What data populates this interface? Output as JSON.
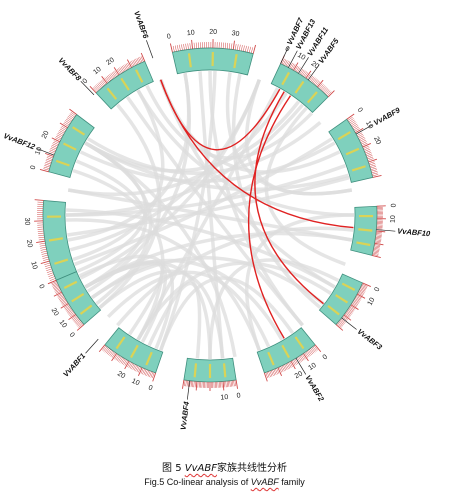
{
  "figure": {
    "caption_cn": {
      "prefix": "图 5 ",
      "gene": "VvABF",
      "suffix": "家族共线性分析"
    },
    "caption_en": {
      "prefix": "Fig.5 Co-linear analysis of ",
      "gene": "VvABF",
      "suffix": " family"
    }
  },
  "chart_data": {
    "type": "circos",
    "chromosomes": [
      {
        "id": "chr1",
        "start": 247,
        "end": 275,
        "ticks": [
          "0",
          "10",
          "20",
          "30"
        ]
      },
      {
        "id": "chr2",
        "start": 285,
        "end": 307,
        "ticks": [
          "0",
          "10",
          "20"
        ]
      },
      {
        "id": "chr3",
        "start": 317,
        "end": 337,
        "ticks": [
          "0",
          "10",
          "20"
        ]
      },
      {
        "id": "chr4",
        "start": 347,
        "end": 375,
        "ticks": [
          "0",
          "10",
          "20",
          "30"
        ]
      },
      {
        "id": "chr5",
        "start": 385,
        "end": 405,
        "ticks": [
          "0",
          "10",
          "20"
        ]
      },
      {
        "id": "chr6",
        "start": 415,
        "end": 437,
        "ticks": [
          "0",
          "10",
          "20"
        ]
      },
      {
        "id": "chr7",
        "start": 447,
        "end": 464,
        "ticks": [
          "0",
          "10"
        ]
      },
      {
        "id": "chr8",
        "start": 474,
        "end": 491,
        "ticks": [
          "0",
          "10"
        ]
      },
      {
        "id": "chr9",
        "start": 501,
        "end": 521,
        "ticks": [
          "0",
          "10",
          "20"
        ]
      },
      {
        "id": "chr10",
        "start": 531,
        "end": 549,
        "ticks": [
          "0",
          "10"
        ]
      },
      {
        "id": "chr11",
        "start": 559,
        "end": 579,
        "ticks": [
          "0",
          "10",
          "20"
        ]
      },
      {
        "id": "chr12",
        "start": 589,
        "end": 607,
        "ticks": [
          "0",
          "10",
          "20"
        ]
      }
    ],
    "genes": [
      {
        "name": "VvABF1",
        "angle": 222
      },
      {
        "name": "VvABF2",
        "angle": 149
      },
      {
        "name": "VvABF3",
        "angle": 128
      },
      {
        "name": "VvABF4",
        "angle": 187
      },
      {
        "name": "VvABF5",
        "angle": 36
      },
      {
        "name": "VvABF6",
        "angle": 340
      },
      {
        "name": "VvABF7",
        "angle": 25
      },
      {
        "name": "VvABF8",
        "angle": 316
      },
      {
        "name": "VvABF9",
        "angle": 61
      },
      {
        "name": "VvABF10",
        "angle": 95
      },
      {
        "name": "VvABF11",
        "angle": 32
      },
      {
        "name": "VvABF12",
        "angle": 291
      },
      {
        "name": "VvABF13",
        "angle": 28
      }
    ],
    "highlighted_links": [
      {
        "from": 340,
        "to": 29
      },
      {
        "from": 340,
        "to": 95
      },
      {
        "from": 31,
        "to": 128
      },
      {
        "from": 34,
        "to": 149
      }
    ],
    "background_links": [
      [
        247,
        300
      ],
      [
        252,
        330
      ],
      [
        256,
        20
      ],
      [
        262,
        75
      ],
      [
        268,
        160
      ],
      [
        272,
        120
      ],
      [
        288,
        210
      ],
      [
        292,
        240
      ],
      [
        296,
        60
      ],
      [
        300,
        170
      ],
      [
        320,
        230
      ],
      [
        325,
        140
      ],
      [
        330,
        90
      ],
      [
        334,
        45
      ],
      [
        350,
        260
      ],
      [
        356,
        175
      ],
      [
        362,
        200
      ],
      [
        368,
        80
      ],
      [
        372,
        130
      ],
      [
        388,
        210
      ],
      [
        392,
        280
      ],
      [
        398,
        300
      ],
      [
        402,
        110
      ],
      [
        418,
        250
      ],
      [
        424,
        340
      ],
      [
        430,
        270
      ],
      [
        434,
        300
      ],
      [
        450,
        520
      ],
      [
        456,
        580
      ],
      [
        460,
        600
      ],
      [
        477,
        540
      ],
      [
        483,
        570
      ],
      [
        488,
        595
      ],
      [
        505,
        560
      ],
      [
        510,
        600
      ],
      [
        516,
        585
      ],
      [
        535,
        590
      ],
      [
        540,
        600
      ],
      [
        545,
        565
      ],
      [
        562,
        600
      ],
      [
        568,
        605
      ],
      [
        574,
        595
      ],
      [
        592,
        300
      ],
      [
        598,
        350
      ],
      [
        604,
        380
      ],
      [
        270,
        400
      ],
      [
        280,
        460
      ],
      [
        302,
        410
      ],
      [
        340,
        480
      ],
      [
        360,
        500
      ],
      [
        380,
        440
      ]
    ],
    "colors": {
      "block_fill": "#7fd0bd",
      "block_stroke": "#3f8f7e",
      "tick": "#d04848",
      "link_bg": "#dcdcdc",
      "link_hl": "#e02222",
      "marker": "#f1d33c"
    }
  }
}
